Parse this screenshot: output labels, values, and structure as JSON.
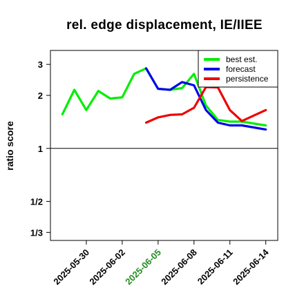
{
  "chart_data": {
    "type": "line",
    "title": "rel. edge displacement, IE/IIEE",
    "xlabel": "",
    "ylabel": "ratio score",
    "y_scale": "log",
    "ylim": [
      0.3,
      3.6
    ],
    "x_range": [
      "2025-05-27",
      "2025-06-15"
    ],
    "y_ticks": [
      {
        "value": 3,
        "label": "3"
      },
      {
        "value": 2,
        "label": "2"
      },
      {
        "value": 1,
        "label": "1"
      },
      {
        "value": 0.5,
        "label": "1/2"
      },
      {
        "value": 0.3333,
        "label": "1/3"
      }
    ],
    "x_ticks": [
      {
        "date": "2025-05-30",
        "label": "2025-05-30",
        "color": "#000000"
      },
      {
        "date": "2025-06-02",
        "label": "2025-06-02",
        "color": "#000000"
      },
      {
        "date": "2025-06-05",
        "label": "2025-06-05",
        "color": "#228b22"
      },
      {
        "date": "2025-06-08",
        "label": "2025-06-08",
        "color": "#000000"
      },
      {
        "date": "2025-06-11",
        "label": "2025-06-11",
        "color": "#000000"
      },
      {
        "date": "2025-06-14",
        "label": "2025-06-14",
        "color": "#000000"
      }
    ],
    "reference_line": 1,
    "legend_position": "top-right",
    "series": [
      {
        "name": "best est.",
        "color": "#00ee00",
        "points": [
          [
            "2025-05-28",
            1.56
          ],
          [
            "2025-05-29",
            2.15
          ],
          [
            "2025-05-30",
            1.65
          ],
          [
            "2025-05-31",
            2.12
          ],
          [
            "2025-06-01",
            1.92
          ],
          [
            "2025-06-02",
            1.95
          ],
          [
            "2025-06-03",
            2.65
          ],
          [
            "2025-06-04",
            2.85
          ],
          [
            "2025-06-05",
            2.18
          ],
          [
            "2025-06-06",
            2.15
          ],
          [
            "2025-06-07",
            2.2
          ],
          [
            "2025-06-08",
            2.65
          ],
          [
            "2025-06-09",
            1.75
          ],
          [
            "2025-06-10",
            1.45
          ],
          [
            "2025-06-11",
            1.42
          ],
          [
            "2025-06-12",
            1.42
          ],
          [
            "2025-06-14",
            1.35
          ]
        ]
      },
      {
        "name": "forecast",
        "color": "#0000ee",
        "points": [
          [
            "2025-06-04",
            2.85
          ],
          [
            "2025-06-05",
            2.18
          ],
          [
            "2025-06-06",
            2.15
          ],
          [
            "2025-06-07",
            2.38
          ],
          [
            "2025-06-08",
            2.28
          ],
          [
            "2025-06-09",
            1.65
          ],
          [
            "2025-06-10",
            1.4
          ],
          [
            "2025-06-11",
            1.35
          ],
          [
            "2025-06-12",
            1.35
          ],
          [
            "2025-06-14",
            1.28
          ]
        ]
      },
      {
        "name": "persistence",
        "color": "#ee0000",
        "points": [
          [
            "2025-06-04",
            1.4
          ],
          [
            "2025-06-05",
            1.5
          ],
          [
            "2025-06-06",
            1.55
          ],
          [
            "2025-06-07",
            1.56
          ],
          [
            "2025-06-08",
            1.7
          ],
          [
            "2025-06-09",
            2.23
          ],
          [
            "2025-06-10",
            2.22
          ],
          [
            "2025-06-11",
            1.65
          ],
          [
            "2025-06-12",
            1.43
          ],
          [
            "2025-06-14",
            1.65
          ]
        ]
      }
    ]
  }
}
